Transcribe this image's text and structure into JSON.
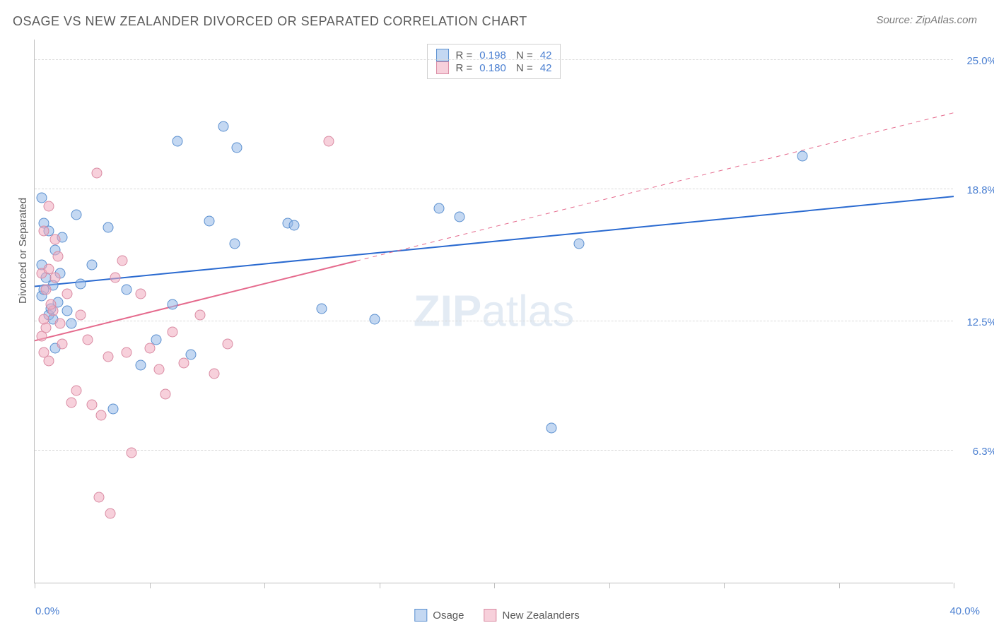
{
  "title": "OSAGE VS NEW ZEALANDER DIVORCED OR SEPARATED CORRELATION CHART",
  "source": "Source: ZipAtlas.com",
  "ylabel": "Divorced or Separated",
  "watermark_a": "ZIP",
  "watermark_b": "atlas",
  "chart": {
    "type": "scatter",
    "xlim": [
      0,
      40
    ],
    "ylim": [
      0,
      26
    ],
    "x_start_label": "0.0%",
    "x_end_label": "40.0%",
    "ytick_labels": [
      "6.3%",
      "12.5%",
      "18.8%",
      "25.0%"
    ],
    "ytick_vals": [
      6.3,
      12.5,
      18.8,
      25.0
    ],
    "xtick_vals": [
      0,
      5,
      10,
      15,
      20,
      25,
      30,
      35,
      40
    ],
    "background_color": "#ffffff",
    "grid_color": "#d9d9d9",
    "axis_color": "#bfbfbf",
    "text_color": "#5a5a5a",
    "value_color": "#4a7fd1",
    "point_radius": 7.5,
    "series": [
      {
        "name": "Osage",
        "fill": "rgba(147,184,232,0.55)",
        "stroke": "#5a8fcf",
        "trend_color": "#2a6ad0",
        "trend_width": 2,
        "trend_x_solid_end": 40,
        "trend_start_y": 14.2,
        "trend_end_y": 18.5,
        "R": "0.198",
        "N": "42",
        "points": [
          [
            0.3,
            13.7
          ],
          [
            0.4,
            14.0
          ],
          [
            0.6,
            12.8
          ],
          [
            0.7,
            13.1
          ],
          [
            0.8,
            12.6
          ],
          [
            0.3,
            18.4
          ],
          [
            0.4,
            17.2
          ],
          [
            1.2,
            16.5
          ],
          [
            1.8,
            17.6
          ],
          [
            0.5,
            14.6
          ],
          [
            0.9,
            11.2
          ],
          [
            1.4,
            13.0
          ],
          [
            1.6,
            12.4
          ],
          [
            2.0,
            14.3
          ],
          [
            2.5,
            15.2
          ],
          [
            3.2,
            17.0
          ],
          [
            3.4,
            8.3
          ],
          [
            4.0,
            14.0
          ],
          [
            4.6,
            10.4
          ],
          [
            5.3,
            11.6
          ],
          [
            6.0,
            13.3
          ],
          [
            6.2,
            21.1
          ],
          [
            6.8,
            10.9
          ],
          [
            7.6,
            17.3
          ],
          [
            8.2,
            21.8
          ],
          [
            8.7,
            16.2
          ],
          [
            8.8,
            20.8
          ],
          [
            11.0,
            17.2
          ],
          [
            11.3,
            17.1
          ],
          [
            12.5,
            13.1
          ],
          [
            14.8,
            12.6
          ],
          [
            17.6,
            17.9
          ],
          [
            18.5,
            17.5
          ],
          [
            22.5,
            7.4
          ],
          [
            23.7,
            16.2
          ],
          [
            33.4,
            20.4
          ],
          [
            1.0,
            13.4
          ],
          [
            1.1,
            14.8
          ],
          [
            0.9,
            15.9
          ],
          [
            0.3,
            15.2
          ],
          [
            0.6,
            16.8
          ],
          [
            0.8,
            14.2
          ]
        ]
      },
      {
        "name": "New Zealanders",
        "fill": "rgba(240,170,190,0.55)",
        "stroke": "#d98aa2",
        "trend_color": "#e56a8d",
        "trend_width": 2,
        "trend_x_solid_end": 14,
        "trend_start_y": 11.6,
        "trend_end_y": 22.5,
        "R": "0.180",
        "N": "42",
        "points": [
          [
            0.3,
            11.8
          ],
          [
            0.4,
            11.0
          ],
          [
            0.5,
            12.2
          ],
          [
            0.6,
            10.6
          ],
          [
            0.8,
            13.0
          ],
          [
            0.4,
            16.8
          ],
          [
            0.6,
            18.0
          ],
          [
            0.9,
            16.4
          ],
          [
            1.2,
            11.4
          ],
          [
            1.4,
            13.8
          ],
          [
            1.6,
            8.6
          ],
          [
            1.8,
            9.2
          ],
          [
            2.0,
            12.8
          ],
          [
            2.3,
            11.6
          ],
          [
            2.5,
            8.5
          ],
          [
            2.7,
            19.6
          ],
          [
            2.8,
            4.1
          ],
          [
            2.9,
            8.0
          ],
          [
            3.2,
            10.8
          ],
          [
            3.3,
            3.3
          ],
          [
            3.5,
            14.6
          ],
          [
            3.8,
            15.4
          ],
          [
            4.0,
            11.0
          ],
          [
            4.2,
            6.2
          ],
          [
            4.6,
            13.8
          ],
          [
            5.0,
            11.2
          ],
          [
            5.4,
            10.2
          ],
          [
            5.7,
            9.0
          ],
          [
            6.0,
            12.0
          ],
          [
            6.5,
            10.5
          ],
          [
            7.2,
            12.8
          ],
          [
            7.8,
            10.0
          ],
          [
            8.4,
            11.4
          ],
          [
            12.8,
            21.1
          ],
          [
            0.3,
            14.8
          ],
          [
            0.5,
            14.0
          ],
          [
            0.7,
            13.3
          ],
          [
            0.4,
            12.6
          ],
          [
            0.9,
            14.6
          ],
          [
            1.0,
            15.6
          ],
          [
            1.1,
            12.4
          ],
          [
            0.6,
            15.0
          ]
        ]
      }
    ]
  },
  "legend_bottom": [
    {
      "label": "Osage",
      "fill": "rgba(147,184,232,0.55)",
      "stroke": "#5a8fcf"
    },
    {
      "label": "New Zealanders",
      "fill": "rgba(240,170,190,0.55)",
      "stroke": "#d98aa2"
    }
  ]
}
